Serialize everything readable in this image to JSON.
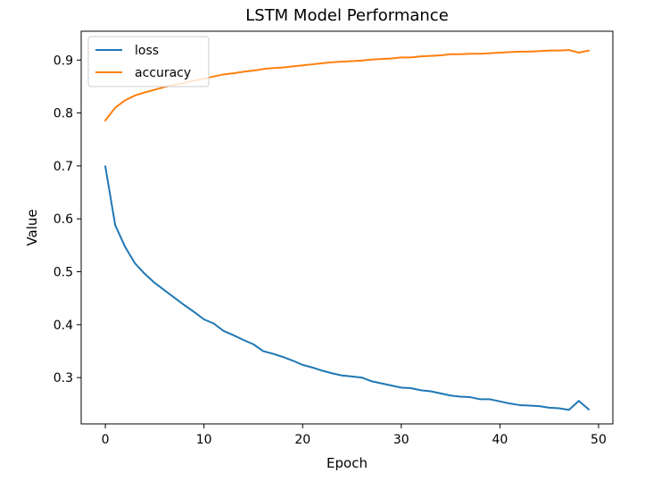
{
  "chart_data": {
    "type": "line",
    "title": "LSTM Model Performance",
    "xlabel": "Epoch",
    "ylabel": "Value",
    "xlim": [
      -2.45,
      51.45
    ],
    "ylim": [
      0.2125,
      0.9545
    ],
    "xticks": [
      0,
      10,
      20,
      30,
      40,
      50
    ],
    "yticks": [
      0.3,
      0.4,
      0.5,
      0.6,
      0.7,
      0.8,
      0.9
    ],
    "grid": false,
    "legend_position": "top-left",
    "x": [
      0,
      1,
      2,
      3,
      4,
      5,
      6,
      7,
      8,
      9,
      10,
      11,
      12,
      13,
      14,
      15,
      16,
      17,
      18,
      19,
      20,
      21,
      22,
      23,
      24,
      25,
      26,
      27,
      28,
      29,
      30,
      31,
      32,
      33,
      34,
      35,
      36,
      37,
      38,
      39,
      40,
      41,
      42,
      43,
      44,
      45,
      46,
      47,
      48,
      49
    ],
    "series": [
      {
        "name": "loss",
        "color": "#1f77b4",
        "values": [
          0.699,
          0.588,
          0.547,
          0.516,
          0.496,
          0.479,
          0.465,
          0.451,
          0.437,
          0.424,
          0.41,
          0.402,
          0.388,
          0.38,
          0.371,
          0.363,
          0.35,
          0.345,
          0.339,
          0.332,
          0.324,
          0.319,
          0.313,
          0.308,
          0.304,
          0.302,
          0.3,
          0.293,
          0.289,
          0.285,
          0.281,
          0.28,
          0.276,
          0.274,
          0.27,
          0.266,
          0.264,
          0.263,
          0.259,
          0.259,
          0.255,
          0.251,
          0.248,
          0.247,
          0.246,
          0.243,
          0.242,
          0.239,
          0.256,
          0.24
        ]
      },
      {
        "name": "accuracy",
        "color": "#ff7f0e",
        "values": [
          0.786,
          0.81,
          0.824,
          0.833,
          0.839,
          0.844,
          0.849,
          0.853,
          0.857,
          0.861,
          0.865,
          0.869,
          0.873,
          0.875,
          0.878,
          0.88,
          0.883,
          0.885,
          0.886,
          0.888,
          0.89,
          0.892,
          0.894,
          0.896,
          0.897,
          0.898,
          0.899,
          0.901,
          0.902,
          0.903,
          0.905,
          0.905,
          0.907,
          0.908,
          0.909,
          0.911,
          0.911,
          0.912,
          0.912,
          0.913,
          0.914,
          0.915,
          0.916,
          0.916,
          0.917,
          0.918,
          0.918,
          0.919,
          0.914,
          0.918
        ]
      }
    ]
  }
}
